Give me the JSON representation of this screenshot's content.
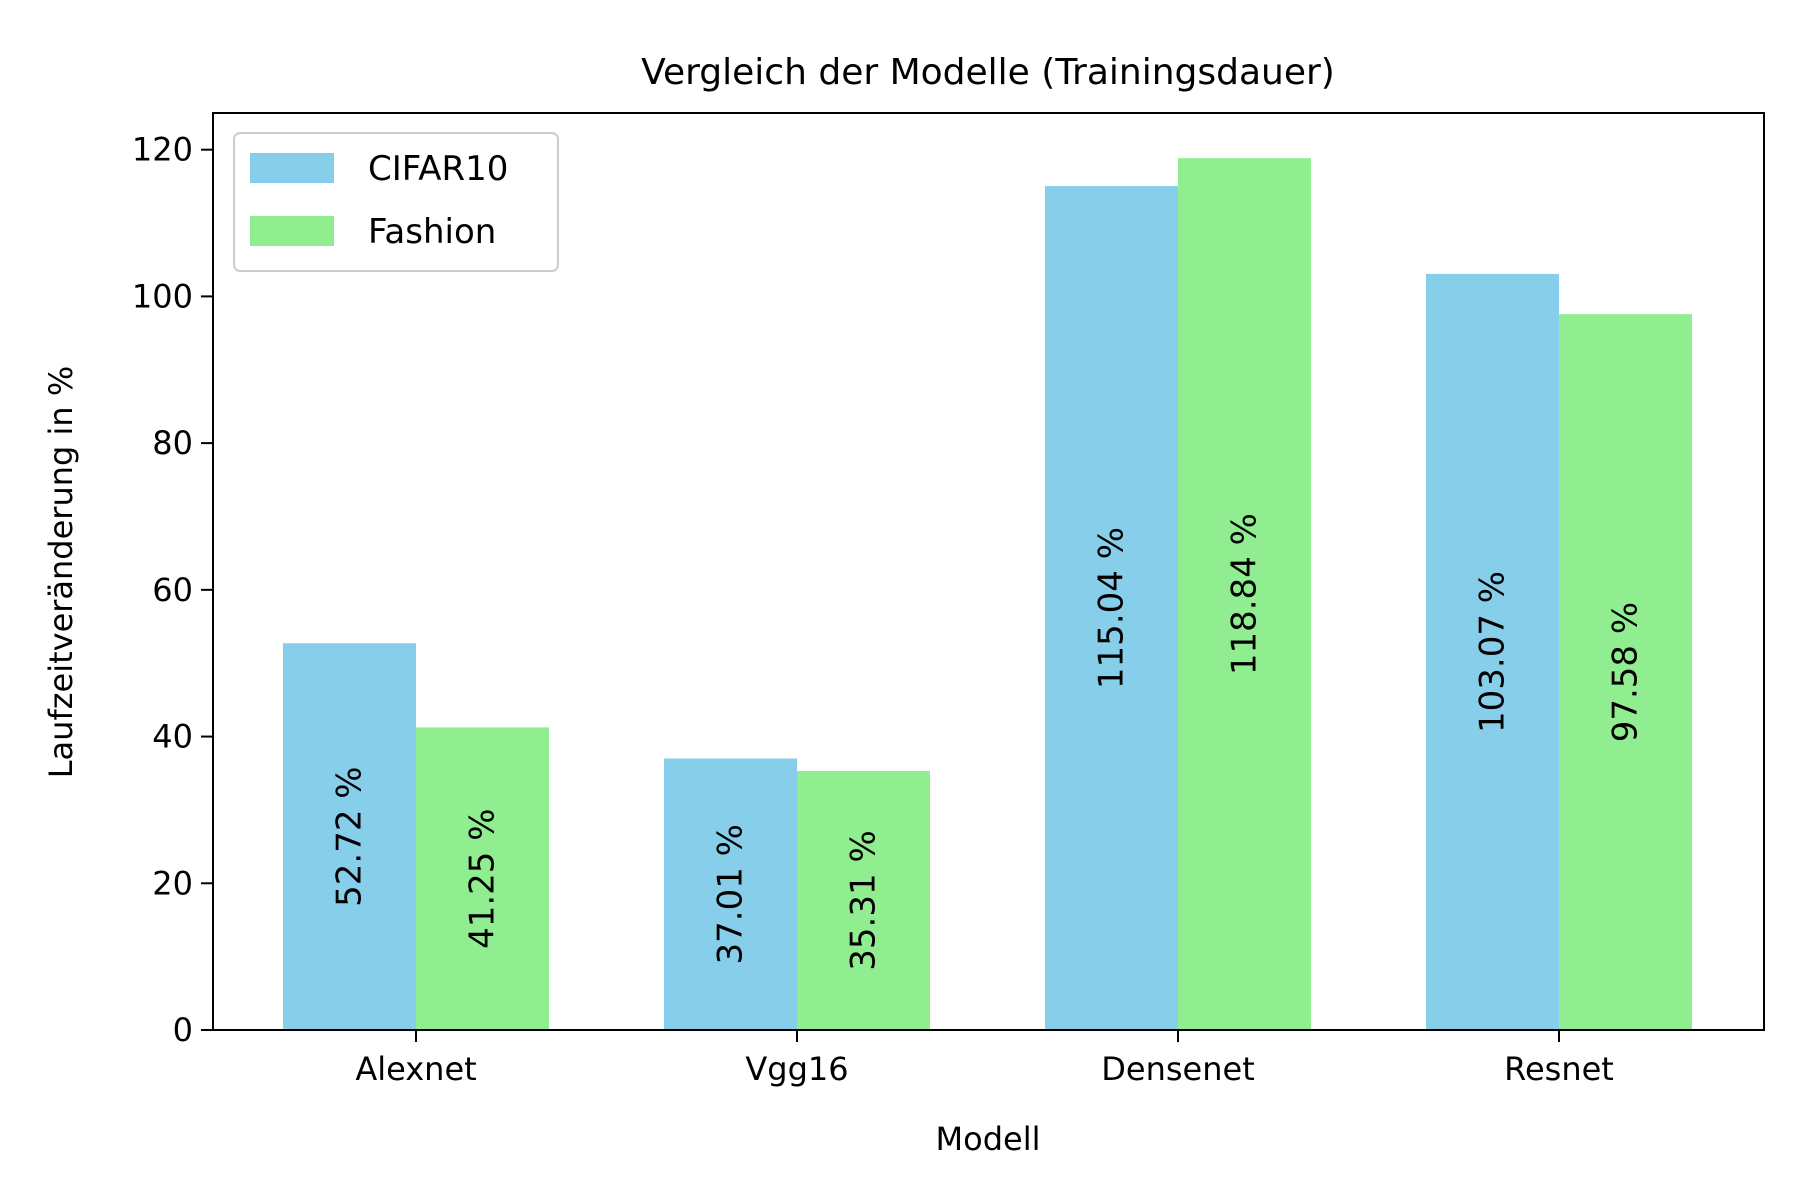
{
  "chart_data": {
    "type": "bar",
    "title": "Vergleich der Modelle (Trainingsdauer)",
    "xlabel": "Modell",
    "ylabel": "Laufzeitveränderung in %",
    "categories": [
      "Alexnet",
      "Vgg16",
      "Densenet",
      "Resnet"
    ],
    "series": [
      {
        "name": "CIFAR10",
        "color": "#87CEEB",
        "values": [
          52.72,
          37.01,
          115.04,
          103.07
        ],
        "labels": [
          "52.72 %",
          "37.01 %",
          "115.04 %",
          "103.07 %"
        ]
      },
      {
        "name": "Fashion",
        "color": "#90EE90",
        "values": [
          41.25,
          35.31,
          118.84,
          97.58
        ],
        "labels": [
          "41.25 %",
          "35.31 %",
          "118.84 %",
          "97.58 %"
        ]
      }
    ],
    "ylim": [
      0,
      125
    ],
    "yticks": [
      0,
      20,
      40,
      60,
      80,
      100,
      120
    ],
    "grid": false,
    "legend_position": "top-left"
  }
}
